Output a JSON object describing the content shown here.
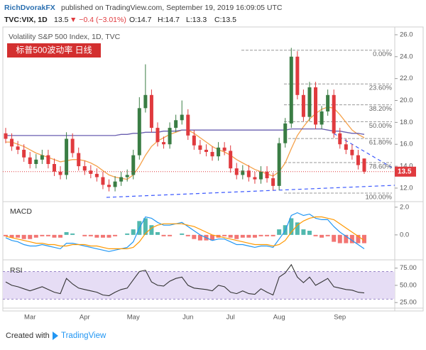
{
  "header": {
    "author": "RichDvorakFX",
    "published": "published on TradingView.com, September 19, 2019 16:09:05 UTC",
    "symbol": "TVC:VIX, 1D",
    "last": "13.5",
    "change": "▼ −0.4 (−3.01%)",
    "open": "O:14.7",
    "high": "H:14.7",
    "low": "L:13.3",
    "close": "C:13.5"
  },
  "chart_data": [
    {
      "type": "candlestick",
      "title": "Volatility S&P 500 Index, 1D, TVC",
      "tag": "标普500波动率  日线",
      "categories": [
        null,
        null,
        null,
        null,
        "Mar",
        null,
        null,
        null,
        null,
        null,
        null,
        null,
        null,
        "Apr",
        null,
        null,
        null,
        null,
        null,
        null,
        null,
        "May",
        null,
        null,
        null,
        null,
        null,
        null,
        null,
        null,
        "Jun",
        null,
        null,
        null,
        null,
        null,
        null,
        "Jul",
        null,
        null,
        null,
        null,
        null,
        null,
        null,
        "Aug",
        null,
        null,
        null,
        null,
        null,
        null,
        null,
        null,
        null,
        "Sep",
        null,
        null,
        null,
        null
      ],
      "open": [
        17.0,
        16.5,
        15.8,
        15.5,
        14.8,
        14.2,
        14.6,
        15.0,
        14.2,
        13.5,
        13.2,
        16.5,
        15.2,
        14.0,
        13.6,
        13.3,
        13.0,
        12.3,
        12.1,
        12.6,
        13.0,
        13.2,
        15.0,
        19.3,
        20.5,
        17.5,
        16.2,
        16.0,
        17.5,
        18.2,
        18.7,
        16.8,
        15.9,
        15.5,
        15.3,
        14.9,
        15.7,
        15.4,
        13.8,
        13.2,
        13.6,
        13.0,
        12.8,
        13.5,
        12.9,
        12.2,
        16.1,
        17.9,
        24.0,
        20.5,
        18.5,
        21.2,
        17.8,
        19.0,
        20.5,
        17.0,
        16.0,
        15.5,
        15.0,
        14.7
      ],
      "high": [
        17.5,
        17.0,
        16.3,
        16.0,
        15.3,
        15.1,
        15.5,
        15.5,
        14.7,
        14.0,
        17.1,
        17.0,
        15.7,
        14.5,
        14.1,
        13.8,
        13.5,
        12.8,
        13.1,
        13.5,
        13.7,
        15.5,
        20.3,
        23.3,
        21.0,
        18.0,
        16.7,
        18.0,
        18.7,
        20.0,
        19.2,
        17.3,
        16.4,
        16.0,
        15.8,
        16.2,
        16.2,
        15.9,
        14.3,
        14.1,
        14.1,
        13.5,
        14.0,
        14.0,
        13.4,
        16.6,
        18.4,
        24.8,
        24.5,
        21.0,
        21.7,
        21.7,
        19.5,
        21.0,
        21.0,
        17.5,
        16.5,
        16.0,
        15.5,
        14.7
      ],
      "low": [
        16.1,
        15.4,
        15.1,
        14.4,
        13.8,
        13.8,
        14.2,
        13.8,
        13.1,
        12.8,
        12.8,
        14.8,
        13.6,
        13.2,
        12.9,
        12.6,
        11.9,
        11.7,
        11.7,
        12.2,
        12.6,
        12.8,
        14.6,
        18.9,
        17.1,
        15.8,
        15.6,
        15.6,
        17.1,
        17.8,
        16.4,
        15.5,
        15.1,
        14.9,
        14.5,
        14.5,
        15.0,
        13.4,
        12.8,
        12.8,
        12.6,
        12.4,
        12.4,
        12.5,
        11.8,
        11.8,
        15.7,
        17.5,
        20.1,
        18.1,
        18.1,
        17.4,
        17.4,
        18.6,
        16.6,
        15.6,
        15.1,
        14.6,
        13.7,
        13.3
      ],
      "close": [
        16.5,
        15.8,
        15.5,
        14.8,
        14.2,
        14.6,
        15.0,
        14.2,
        13.5,
        13.2,
        16.5,
        15.2,
        14.0,
        13.6,
        13.3,
        13.0,
        12.3,
        12.1,
        12.6,
        13.0,
        13.2,
        15.0,
        19.3,
        20.5,
        17.5,
        16.2,
        16.0,
        17.5,
        18.2,
        18.7,
        16.8,
        15.9,
        15.5,
        15.3,
        14.9,
        15.7,
        15.4,
        13.8,
        13.2,
        13.6,
        13.0,
        12.8,
        13.5,
        12.9,
        12.2,
        16.1,
        17.9,
        24.0,
        20.5,
        18.5,
        21.2,
        17.8,
        19.0,
        20.5,
        17.0,
        16.0,
        15.5,
        15.0,
        14.1,
        13.5
      ],
      "up_color": "#3a7d44",
      "down_color": "#e03a3e",
      "last_color": "#e03a3e",
      "overlays": [
        {
          "color": "#f5a14a",
          "values": [
            16.2,
            16.2,
            16.0,
            15.8,
            15.5,
            15.2,
            15.0,
            14.8,
            14.6,
            14.4,
            14.5,
            14.6,
            14.6,
            14.5,
            14.3,
            14.0,
            13.6,
            13.2,
            13.0,
            12.9,
            12.8,
            13.2,
            14.0,
            15.0,
            15.8,
            16.3,
            16.6,
            16.9,
            17.1,
            17.3,
            17.3,
            17.0,
            16.6,
            16.2,
            15.8,
            15.5,
            15.3,
            15.0,
            14.6,
            14.3,
            14.0,
            13.7,
            13.5,
            13.3,
            13.1,
            13.5,
            14.3,
            15.6,
            16.8,
            17.6,
            18.3,
            18.8,
            19.2,
            19.4,
            19.3,
            18.7,
            18.0,
            17.3,
            16.9,
            16.6
          ]
        },
        {
          "color": "#6a5fb0",
          "values": [
            16.8,
            16.8,
            16.8,
            16.8,
            16.8,
            16.8,
            16.8,
            16.8,
            16.8,
            16.8,
            16.8,
            16.8,
            16.8,
            16.8,
            16.8,
            16.8,
            16.8,
            16.8,
            16.8,
            16.9,
            16.9,
            17.0,
            17.0,
            17.1,
            17.1,
            17.1,
            17.2,
            17.2,
            17.2,
            17.3,
            17.3,
            17.3,
            17.3,
            17.3,
            17.3,
            17.3,
            17.3,
            17.3,
            17.3,
            17.3,
            17.3,
            17.3,
            17.3,
            17.3,
            17.3,
            17.3,
            17.3,
            17.4,
            17.4,
            17.4,
            17.4,
            17.4,
            17.4,
            17.3,
            17.2,
            17.2,
            17.1,
            17.0,
            17.0,
            16.9
          ]
        }
      ],
      "fib": {
        "top": 24.59,
        "bottom": 11.54,
        "color": "#999999",
        "levels": [
          {
            "value": 0,
            "label": "0.00%"
          },
          {
            "value": 23.6,
            "label": "23.60%"
          },
          {
            "value": 38.2,
            "label": "38.20%"
          },
          {
            "value": 50,
            "label": "50.00%"
          },
          {
            "value": 61.8,
            "label": "61.80%"
          },
          {
            "value": 78.6,
            "label": "78.60%"
          },
          {
            "value": 100,
            "label": "100.00%"
          }
        ]
      },
      "ylim": [
        10.83,
        26.58
      ],
      "yticks": [
        {
          "value": 12,
          "label": "12.0"
        },
        {
          "value": 14,
          "label": "14.0"
        },
        {
          "value": 16,
          "label": "16.0"
        },
        {
          "value": 18,
          "label": "18.0"
        },
        {
          "value": 20,
          "label": "20.0"
        },
        {
          "value": 22,
          "label": "22.0"
        },
        {
          "value": 24,
          "label": "24.0"
        },
        {
          "value": 26,
          "label": "26.0"
        }
      ]
    },
    {
      "type": "macd",
      "title": "MACD",
      "ylim": [
        -1.75,
        2.35
      ],
      "yticks": [
        {
          "value": 2,
          "label": "2.0"
        },
        {
          "value": 0,
          "label": "0.0"
        }
      ],
      "histogram": {
        "up_color": "#26a69a",
        "down_color": "#ef5350",
        "values": [
          -0.1,
          -0.2,
          -0.2,
          -0.3,
          -0.3,
          -0.2,
          -0.1,
          -0.1,
          -0.2,
          -0.2,
          0.2,
          0.1,
          0,
          -0.1,
          -0.1,
          -0.2,
          -0.2,
          -0.2,
          -0.1,
          0,
          0.1,
          0.4,
          1.0,
          1.2,
          0.7,
          0.2,
          -0.1,
          -0.1,
          0,
          0.1,
          -0.1,
          -0.3,
          -0.4,
          -0.4,
          -0.4,
          -0.2,
          -0.1,
          -0.2,
          -0.3,
          -0.2,
          -0.2,
          -0.2,
          -0.1,
          -0.1,
          -0.1,
          0.4,
          0.7,
          1.2,
          0.9,
          0.4,
          0.3,
          -0.1,
          -0.2,
          -0.1,
          -0.5,
          -0.6,
          -0.6,
          -0.6,
          -0.6,
          -0.6
        ]
      },
      "series": [
        {
          "color": "#2196f3",
          "values": [
            -0.2,
            -0.4,
            -0.5,
            -0.7,
            -0.8,
            -0.8,
            -0.7,
            -0.8,
            -0.9,
            -1.0,
            -0.6,
            -0.6,
            -0.7,
            -0.8,
            -0.9,
            -1.0,
            -1.1,
            -1.2,
            -1.1,
            -1.0,
            -0.9,
            -0.5,
            0.5,
            1.3,
            1.2,
            0.9,
            0.7,
            0.7,
            0.8,
            0.9,
            0.6,
            0.3,
            0.0,
            -0.2,
            -0.4,
            -0.3,
            -0.3,
            -0.5,
            -0.7,
            -0.7,
            -0.8,
            -0.9,
            -0.8,
            -0.8,
            -0.9,
            -0.3,
            0.3,
            1.4,
            1.6,
            1.4,
            1.5,
            1.2,
            1.1,
            1.1,
            0.6,
            0.2,
            -0.1,
            -0.4,
            -0.7,
            -1.0
          ]
        },
        {
          "color": "#ff9800",
          "values": [
            -0.1,
            -0.2,
            -0.3,
            -0.4,
            -0.5,
            -0.6,
            -0.6,
            -0.7,
            -0.7,
            -0.8,
            -0.8,
            -0.7,
            -0.7,
            -0.7,
            -0.8,
            -0.8,
            -0.9,
            -1.0,
            -1.0,
            -1.0,
            -1.0,
            -0.9,
            -0.5,
            0.1,
            0.5,
            0.7,
            0.8,
            0.8,
            0.8,
            0.8,
            0.7,
            0.6,
            0.4,
            0.2,
            0.0,
            -0.1,
            -0.2,
            -0.3,
            -0.4,
            -0.5,
            -0.6,
            -0.7,
            -0.7,
            -0.7,
            -0.8,
            -0.7,
            -0.4,
            0.2,
            0.7,
            1.0,
            1.2,
            1.3,
            1.3,
            1.2,
            1.1,
            0.8,
            0.5,
            0.2,
            -0.1,
            -0.4
          ]
        }
      ]
    },
    {
      "type": "rsi",
      "title": "RSI",
      "ylim": [
        19,
        85
      ],
      "yticks": [
        {
          "value": 25,
          "label": "25.00"
        },
        {
          "value": 50,
          "label": "50.00"
        },
        {
          "value": 75,
          "label": "75.00"
        }
      ],
      "band": [
        30,
        70
      ],
      "band_color": "#e6ddf5",
      "series": [
        {
          "color": "#333333",
          "values": [
            55,
            50,
            48,
            45,
            42,
            45,
            48,
            44,
            40,
            38,
            60,
            52,
            46,
            44,
            42,
            40,
            36,
            35,
            40,
            44,
            46,
            58,
            70,
            72,
            55,
            50,
            49,
            56,
            60,
            62,
            50,
            46,
            45,
            44,
            42,
            50,
            48,
            40,
            38,
            42,
            38,
            37,
            45,
            40,
            36,
            62,
            68,
            80,
            62,
            54,
            62,
            50,
            55,
            60,
            48,
            46,
            44,
            43,
            40,
            39
          ]
        }
      ]
    }
  ],
  "footer": {
    "created": "Created with",
    "brand": "TradingView"
  }
}
